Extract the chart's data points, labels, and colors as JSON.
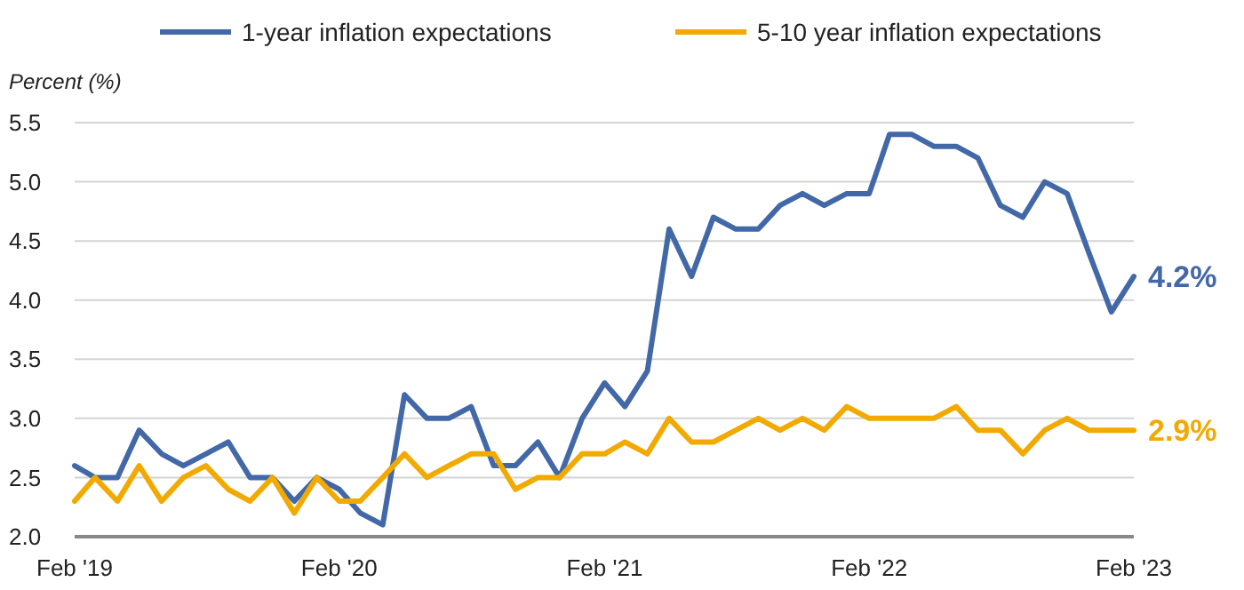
{
  "chart_data": {
    "type": "line",
    "ylabel": "Percent (%)",
    "x": [
      "2019-02",
      "2019-03",
      "2019-04",
      "2019-05",
      "2019-06",
      "2019-07",
      "2019-08",
      "2019-09",
      "2019-10",
      "2019-11",
      "2019-12",
      "2020-01",
      "2020-02",
      "2020-03",
      "2020-04",
      "2020-05",
      "2020-06",
      "2020-07",
      "2020-08",
      "2020-09",
      "2020-10",
      "2020-11",
      "2020-12",
      "2021-01",
      "2021-02",
      "2021-03",
      "2021-04",
      "2021-05",
      "2021-06",
      "2021-07",
      "2021-08",
      "2021-09",
      "2021-10",
      "2021-11",
      "2021-12",
      "2022-01",
      "2022-02",
      "2022-03",
      "2022-04",
      "2022-05",
      "2022-06",
      "2022-07",
      "2022-08",
      "2022-09",
      "2022-10",
      "2022-11",
      "2022-12",
      "2023-01",
      "2023-02"
    ],
    "series": [
      {
        "name": "1-year inflation expectations",
        "color": "#4268a8",
        "values": [
          2.6,
          2.5,
          2.5,
          2.9,
          2.7,
          2.6,
          2.7,
          2.8,
          2.5,
          2.5,
          2.3,
          2.5,
          2.4,
          2.2,
          2.1,
          3.2,
          3.0,
          3.0,
          3.1,
          2.6,
          2.6,
          2.8,
          2.5,
          3.0,
          3.3,
          3.1,
          3.4,
          4.6,
          4.2,
          4.7,
          4.6,
          4.6,
          4.8,
          4.9,
          4.8,
          4.9,
          4.9,
          5.4,
          5.4,
          5.3,
          5.3,
          5.2,
          4.8,
          4.7,
          5.0,
          4.9,
          4.4,
          3.9,
          4.2
        ],
        "value_labels": [
          null,
          null,
          null,
          null,
          null,
          null,
          null,
          null,
          null,
          null,
          null,
          null,
          null,
          null,
          null,
          null,
          null,
          null,
          null,
          null,
          null,
          null,
          null,
          null,
          null,
          null,
          null,
          null,
          null,
          null,
          null,
          null,
          null,
          null,
          null,
          null,
          null,
          null,
          null,
          null,
          null,
          null,
          null,
          null,
          null,
          null,
          null,
          null,
          "4.2%"
        ]
      },
      {
        "name": "5-10 year inflation expectations",
        "color": "#f2a900",
        "values": [
          2.3,
          2.5,
          2.3,
          2.6,
          2.3,
          2.5,
          2.6,
          2.4,
          2.3,
          2.5,
          2.2,
          2.5,
          2.3,
          2.3,
          2.5,
          2.7,
          2.5,
          2.6,
          2.7,
          2.7,
          2.4,
          2.5,
          2.5,
          2.7,
          2.7,
          2.8,
          2.7,
          3.0,
          2.8,
          2.8,
          2.9,
          3.0,
          2.9,
          3.0,
          2.9,
          3.1,
          3.0,
          3.0,
          3.0,
          3.0,
          3.1,
          2.9,
          2.9,
          2.7,
          2.9,
          3.0,
          2.9,
          2.9,
          2.9
        ],
        "value_labels": [
          null,
          null,
          null,
          null,
          null,
          null,
          null,
          null,
          null,
          null,
          null,
          null,
          null,
          null,
          null,
          null,
          null,
          null,
          null,
          null,
          null,
          null,
          null,
          null,
          null,
          null,
          null,
          null,
          null,
          null,
          null,
          null,
          null,
          null,
          null,
          null,
          null,
          null,
          null,
          null,
          null,
          null,
          null,
          null,
          null,
          null,
          null,
          null,
          "2.9%"
        ]
      }
    ],
    "xlim": [
      "2019-02",
      "2023-02"
    ],
    "xticks": [
      {
        "value": "2019-02",
        "label": "Feb '19"
      },
      {
        "value": "2020-02",
        "label": "Feb '20"
      },
      {
        "value": "2021-02",
        "label": "Feb '21"
      },
      {
        "value": "2022-02",
        "label": "Feb '22"
      },
      {
        "value": "2023-02",
        "label": "Feb '23"
      }
    ],
    "ylim": [
      2.0,
      5.5
    ],
    "yticks": [
      {
        "value": 2,
        "label": "2.0"
      },
      {
        "value": 2.5,
        "label": "2.5"
      },
      {
        "value": 3,
        "label": "3.0"
      },
      {
        "value": 3.5,
        "label": "3.5"
      },
      {
        "value": 4,
        "label": "4.0"
      },
      {
        "value": 4.5,
        "label": "4.5"
      },
      {
        "value": 5,
        "label": "5.0"
      },
      {
        "value": 5.5,
        "label": "5.5"
      }
    ],
    "grid": "y",
    "legend": "top",
    "marker": "none",
    "line_style": "solid"
  }
}
